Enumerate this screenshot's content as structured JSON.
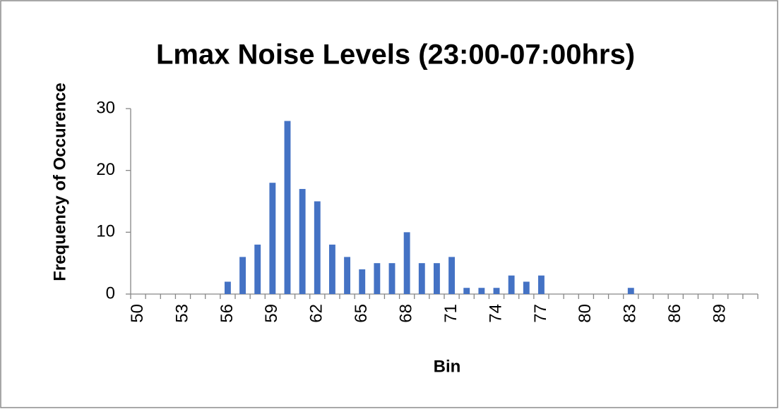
{
  "chart_data": {
    "type": "bar",
    "title": "Lmax Noise Levels (23:00-07:00hrs)",
    "x_label": "Bin",
    "y_label": "Frequency of Occurence",
    "categories": [
      50,
      null,
      null,
      53,
      null,
      null,
      56,
      null,
      null,
      59,
      null,
      null,
      62,
      null,
      null,
      65,
      null,
      null,
      68,
      null,
      null,
      71,
      null,
      null,
      74,
      null,
      null,
      77,
      null,
      null,
      80,
      null,
      null,
      83,
      null,
      null,
      86,
      null,
      null,
      89,
      null,
      null
    ],
    "values": [
      0,
      0,
      0,
      0,
      0,
      0,
      2,
      6,
      8,
      18,
      28,
      17,
      15,
      8,
      6,
      4,
      5,
      5,
      10,
      5,
      5,
      6,
      1,
      1,
      1,
      3,
      2,
      3,
      0,
      0,
      0,
      0,
      0,
      1,
      0,
      0,
      0,
      0,
      0,
      0,
      0,
      0
    ],
    "color": "#4472c4",
    "ylim": [
      0,
      30
    ],
    "yticks": [
      0,
      10,
      20,
      30
    ],
    "grid": false
  }
}
